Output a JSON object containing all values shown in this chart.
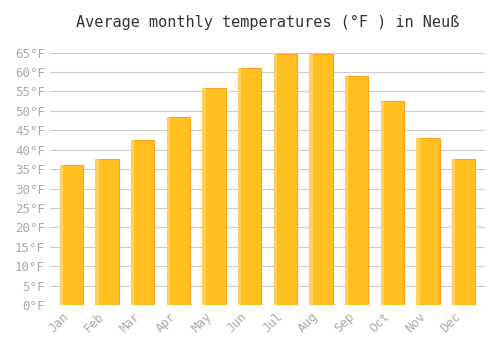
{
  "title": "Average monthly temperatures (°F ) in Neuß",
  "months": [
    "Jan",
    "Feb",
    "Mar",
    "Apr",
    "May",
    "Jun",
    "Jul",
    "Aug",
    "Sep",
    "Oct",
    "Nov",
    "Dec"
  ],
  "values": [
    36.0,
    37.5,
    42.5,
    48.5,
    56.0,
    61.0,
    64.5,
    64.5,
    59.0,
    52.5,
    43.0,
    37.5
  ],
  "bar_color_face": "#FFC020",
  "bar_color_edge": "#FFA020",
  "background_color": "#ffffff",
  "grid_color": "#cccccc",
  "ylim": [
    0,
    68
  ],
  "yticks": [
    0,
    5,
    10,
    15,
    20,
    25,
    30,
    35,
    40,
    45,
    50,
    55,
    60,
    65
  ],
  "title_fontsize": 11,
  "tick_fontsize": 9,
  "tick_font_color": "#aaaaaa"
}
